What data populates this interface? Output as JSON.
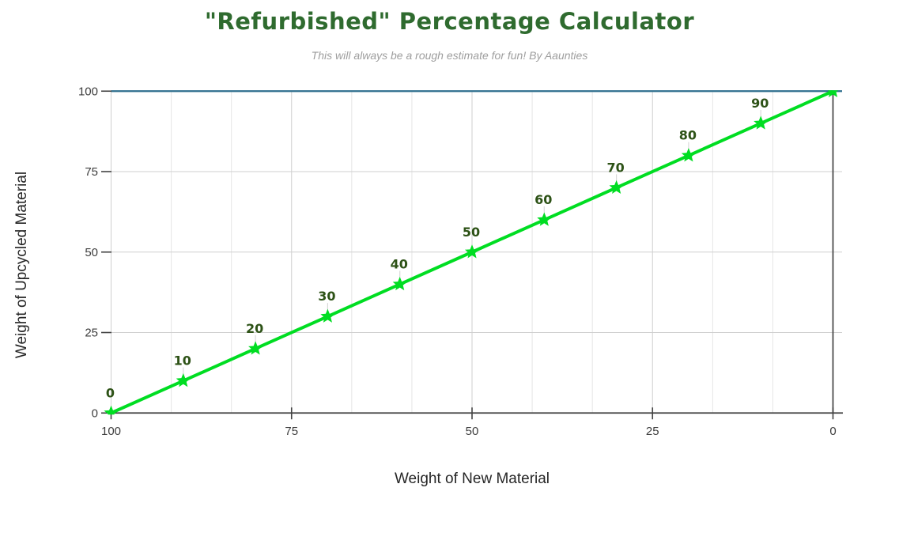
{
  "chart_data": {
    "type": "line",
    "title": "\"Refurbished\" Percentage Calculator",
    "subtitle": "This will always be a rough estimate for fun! By Aaunties",
    "xlabel": "Weight of New Material",
    "ylabel": "Weight of Upcycled Material",
    "xlim": [
      100,
      0
    ],
    "ylim": [
      0,
      100
    ],
    "x_reversed": true,
    "x_ticks": [
      100,
      75,
      50,
      25,
      0
    ],
    "y_ticks": [
      0,
      25,
      50,
      75,
      100
    ],
    "grid": {
      "major_color": "#cfcfcf",
      "minor_color": "#e6e6e6",
      "x_minor_per_major": 3
    },
    "axis_color": "#424242",
    "tick_label_color": "#3d3d3d",
    "title_color": "#2f6b2f",
    "subtitle_color": "#9e9e9e",
    "series": [
      {
        "color": "#00dd22",
        "marker": "star",
        "marker_size": 9.5,
        "label_color": "#2d5216",
        "points": [
          {
            "x": 100,
            "y": 0,
            "label": "0"
          },
          {
            "x": 90,
            "y": 10,
            "label": "10"
          },
          {
            "x": 80,
            "y": 20,
            "label": "20"
          },
          {
            "x": 70,
            "y": 30,
            "label": "30"
          },
          {
            "x": 60,
            "y": 40,
            "label": "40"
          },
          {
            "x": 50,
            "y": 50,
            "label": "50"
          },
          {
            "x": 40,
            "y": 60,
            "label": "60"
          },
          {
            "x": 30,
            "y": 70,
            "label": "70"
          },
          {
            "x": 20,
            "y": 80,
            "label": "80"
          },
          {
            "x": 10,
            "y": 90,
            "label": "90"
          },
          {
            "x": 0,
            "y": 100
          }
        ]
      },
      {
        "color": "#2e6f8e",
        "points": [
          {
            "x": 100,
            "y": 100
          },
          {
            "x": 0,
            "y": 100
          }
        ]
      }
    ]
  }
}
